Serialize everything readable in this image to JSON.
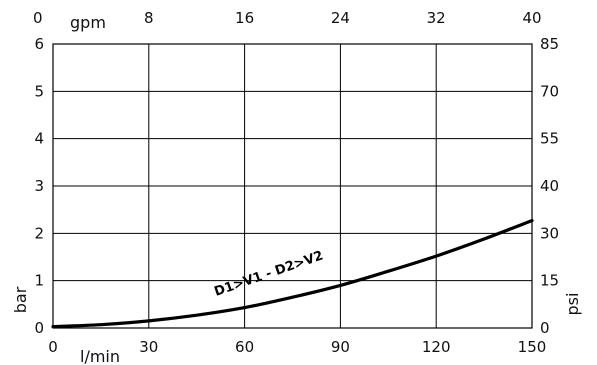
{
  "chart_data": {
    "type": "line",
    "title": "",
    "xlabel": "l/min",
    "ylabel": "bar",
    "xlim": [
      0,
      150
    ],
    "ylim": [
      0,
      6
    ],
    "grid": true,
    "x_ticks": [
      0,
      30,
      60,
      90,
      120,
      150
    ],
    "y_ticks": [
      0,
      1,
      2,
      3,
      4,
      5,
      6
    ],
    "top_axis": {
      "unit": "gpm",
      "ticks": [
        {
          "label": "0",
          "x": 0
        },
        {
          "label": "8",
          "x": 30
        },
        {
          "label": "16",
          "x": 60
        },
        {
          "label": "24",
          "x": 90
        },
        {
          "label": "32",
          "x": 120
        },
        {
          "label": "40",
          "x": 150
        }
      ]
    },
    "right_axis": {
      "label": "psi",
      "ticks": [
        {
          "label": "0",
          "y": 0
        },
        {
          "label": "15",
          "y": 1
        },
        {
          "label": "30",
          "y": 2
        },
        {
          "label": "40",
          "y": 3
        },
        {
          "label": "55",
          "y": 4
        },
        {
          "label": "70",
          "y": 5
        },
        {
          "label": "85",
          "y": 6
        }
      ]
    },
    "series": [
      {
        "name": "D1>V1 - D2>V2",
        "x": [
          0,
          15,
          30,
          45,
          60,
          75,
          90,
          105,
          120,
          135,
          150
        ],
        "y": [
          0.03,
          0.07,
          0.15,
          0.27,
          0.43,
          0.65,
          0.9,
          1.2,
          1.52,
          1.88,
          2.27
        ]
      }
    ]
  }
}
